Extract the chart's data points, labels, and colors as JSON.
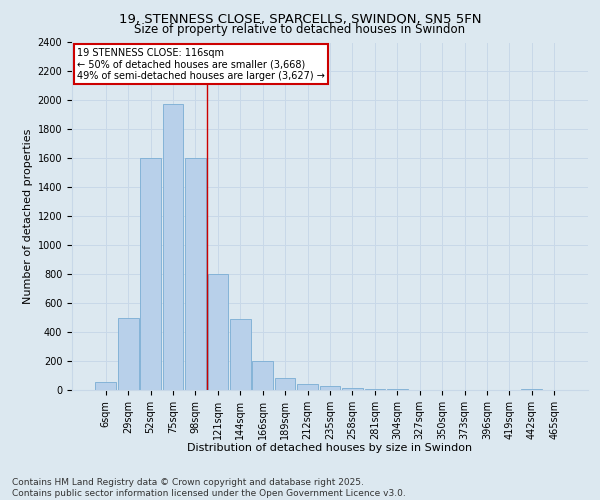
{
  "title_line1": "19, STENNESS CLOSE, SPARCELLS, SWINDON, SN5 5FN",
  "title_line2": "Size of property relative to detached houses in Swindon",
  "xlabel": "Distribution of detached houses by size in Swindon",
  "ylabel": "Number of detached properties",
  "categories": [
    "6sqm",
    "29sqm",
    "52sqm",
    "75sqm",
    "98sqm",
    "121sqm",
    "144sqm",
    "166sqm",
    "189sqm",
    "212sqm",
    "235sqm",
    "258sqm",
    "281sqm",
    "304sqm",
    "327sqm",
    "350sqm",
    "373sqm",
    "396sqm",
    "419sqm",
    "442sqm",
    "465sqm"
  ],
  "values": [
    55,
    500,
    1600,
    1975,
    1600,
    800,
    490,
    200,
    85,
    40,
    25,
    15,
    10,
    5,
    3,
    2,
    0,
    0,
    0,
    10,
    0
  ],
  "bar_color": "#b8d0ea",
  "bar_edgecolor": "#7aadd4",
  "grid_color": "#c8d8e8",
  "background_color": "#dce8f0",
  "vline_x": 4.5,
  "vline_color": "#cc0000",
  "annotation_text": "19 STENNESS CLOSE: 116sqm\n← 50% of detached houses are smaller (3,668)\n49% of semi-detached houses are larger (3,627) →",
  "annotation_box_facecolor": "#ffffff",
  "annotation_box_edgecolor": "#cc0000",
  "ylim": [
    0,
    2400
  ],
  "yticks": [
    0,
    200,
    400,
    600,
    800,
    1000,
    1200,
    1400,
    1600,
    1800,
    2000,
    2200,
    2400
  ],
  "footnote": "Contains HM Land Registry data © Crown copyright and database right 2025.\nContains public sector information licensed under the Open Government Licence v3.0.",
  "title_fontsize": 9.5,
  "subtitle_fontsize": 8.5,
  "axis_label_fontsize": 8,
  "tick_fontsize": 7,
  "annotation_fontsize": 7,
  "footnote_fontsize": 6.5
}
